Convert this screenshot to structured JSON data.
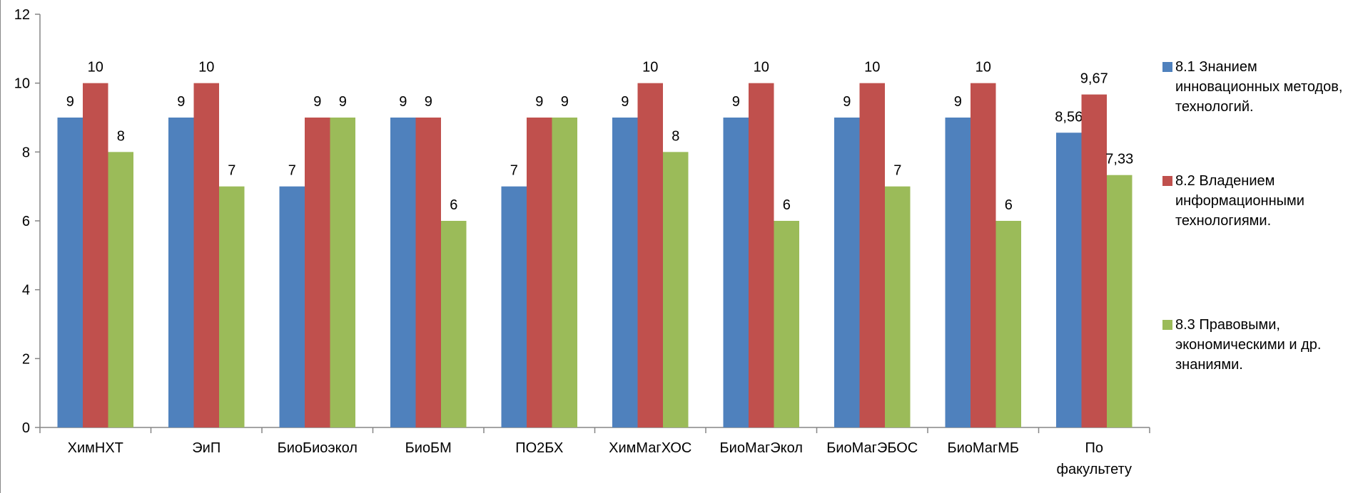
{
  "chart_data": {
    "type": "bar",
    "title": "",
    "xlabel": "",
    "ylabel": "",
    "ylim": [
      0,
      12
    ],
    "yticks": [
      0,
      2,
      4,
      6,
      8,
      10,
      12
    ],
    "grid": false,
    "legend_position": "right",
    "categories": [
      "ХимНХТ",
      "ЭиП",
      "БиоБиоэкол",
      "БиоБМ",
      "ПО2БХ",
      "ХимМагХОС",
      "БиоМагЭкол",
      "БиоМагЭБОС",
      "БиоМагМБ",
      "По факультету"
    ],
    "series": [
      {
        "name": "8.1 Знанием инновационных методов, технологий.",
        "color": "#4F81BD",
        "values": [
          9,
          9,
          7,
          9,
          7,
          9,
          9,
          9,
          9,
          8.56
        ],
        "labels": [
          "9",
          "9",
          "7",
          "9",
          "7",
          "9",
          "9",
          "9",
          "9",
          "8,56"
        ]
      },
      {
        "name": "8.2 Владением информационными технологиями.",
        "color": "#C0504D",
        "values": [
          10,
          10,
          9,
          9,
          9,
          10,
          10,
          10,
          10,
          9.67
        ],
        "labels": [
          "10",
          "10",
          "9",
          "9",
          "9",
          "10",
          "10",
          "10",
          "10",
          "9,67"
        ]
      },
      {
        "name": "8.3 Правовыми, экономическими и др. знаниями.",
        "color": "#9BBB59",
        "values": [
          8,
          7,
          9,
          6,
          9,
          8,
          6,
          7,
          6,
          7.33
        ],
        "labels": [
          "8",
          "7",
          "9",
          "6",
          "9",
          "8",
          "6",
          "7",
          "6",
          "7,33"
        ]
      }
    ]
  }
}
